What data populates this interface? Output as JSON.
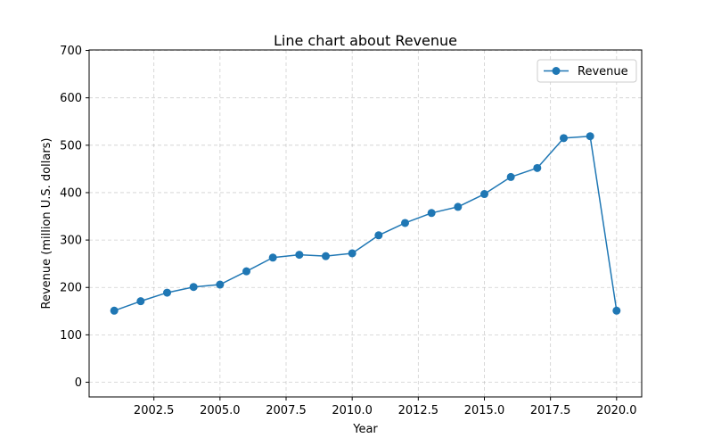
{
  "chart_data": {
    "type": "line",
    "title": "Line chart about Revenue",
    "xlabel": "Year",
    "ylabel": "Revenue (million U.S. dollars)",
    "xlim": [
      2000.05,
      2020.95
    ],
    "ylim": [
      -31,
      701
    ],
    "xticks": [
      2002.5,
      2005.0,
      2007.5,
      2010.0,
      2012.5,
      2015.0,
      2017.5,
      2020.0
    ],
    "xtick_labels": [
      "2002.5",
      "2005.0",
      "2007.5",
      "2010.0",
      "2012.5",
      "2015.0",
      "2017.5",
      "2020.0"
    ],
    "yticks": [
      0,
      100,
      200,
      300,
      400,
      500,
      600,
      700
    ],
    "ytick_labels": [
      "0",
      "100",
      "200",
      "300",
      "400",
      "500",
      "600",
      "700"
    ],
    "grid": true,
    "legend_position": "upper-right",
    "series": [
      {
        "name": "Revenue",
        "color": "#1f77b4",
        "marker": "circle",
        "x": [
          2001,
          2002,
          2003,
          2004,
          2005,
          2006,
          2007,
          2008,
          2009,
          2010,
          2011,
          2012,
          2013,
          2014,
          2015,
          2016,
          2017,
          2018,
          2019,
          2020
        ],
        "y": [
          151,
          171,
          189,
          201,
          206,
          234,
          263,
          269,
          266,
          272,
          310,
          336,
          357,
          370,
          397,
          433,
          452,
          515,
          519,
          151
        ]
      }
    ]
  }
}
